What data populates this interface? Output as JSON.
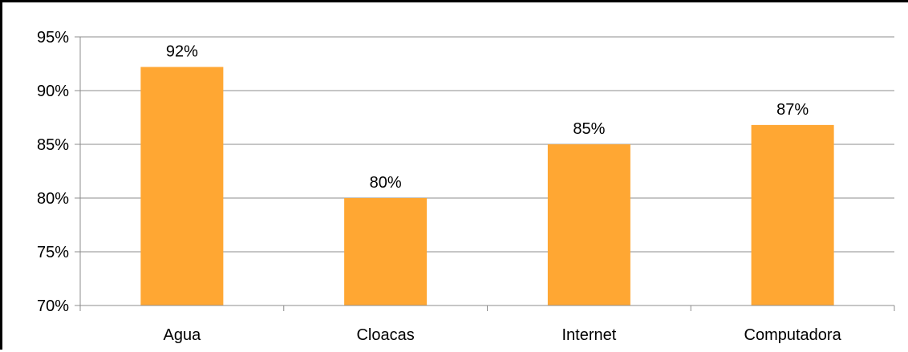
{
  "chart_data": {
    "type": "bar",
    "categories": [
      "Agua",
      "Cloacas",
      "Internet",
      "Computadora"
    ],
    "values": [
      92.2,
      80.0,
      85.0,
      86.8
    ],
    "data_labels": [
      "92%",
      "80%",
      "85%",
      "87%"
    ],
    "title": "",
    "xlabel": "",
    "ylabel": "",
    "ylim": [
      70,
      95
    ],
    "y_ticks": [
      70,
      75,
      80,
      85,
      90,
      95
    ],
    "y_tick_labels": [
      "70%",
      "75%",
      "80%",
      "85%",
      "90%",
      "95%"
    ],
    "grid": true,
    "legend": "none",
    "colors": {
      "bar": "#FFA733",
      "grid": "#8C8C8C",
      "axis": "#8C8C8C",
      "text": "#000000"
    }
  }
}
